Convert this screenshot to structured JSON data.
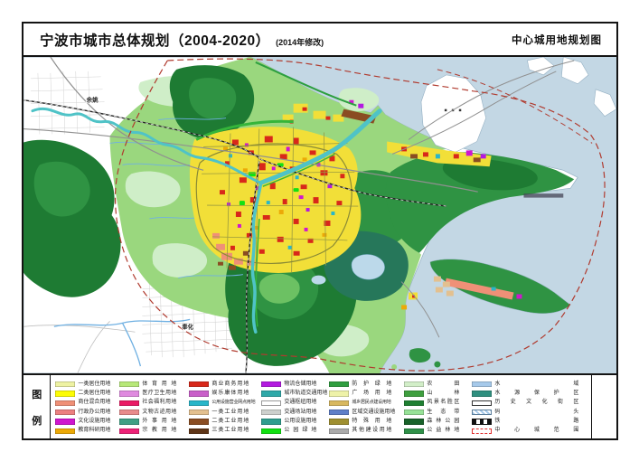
{
  "title": {
    "main": "宁波市城市总体规划（2004-2020）",
    "revision": "(2014年修改)",
    "right": "中心城用地规划图"
  },
  "legend": {
    "key_chars": [
      "图",
      "例"
    ],
    "columns": [
      [
        {
          "label": "一类居住用地",
          "color": "#eef2a3",
          "style": "solid"
        },
        {
          "label": "二类居住用地",
          "color": "#fcfc05",
          "style": "solid"
        },
        {
          "label": "商住混合用地",
          "color": "#ef9077",
          "style": "solid"
        },
        {
          "label": "行政办公用地",
          "color": "#ec8080",
          "style": "solid"
        },
        {
          "label": "文化设施用地",
          "color": "#cf16cf",
          "style": "solid"
        },
        {
          "label": "教育科研用地",
          "color": "#eca907",
          "style": "solid"
        }
      ],
      [
        {
          "label": "体育用地",
          "color": "#b7e878",
          "style": "solid"
        },
        {
          "label": "医疗卫生用地",
          "color": "#df8adf",
          "style": "solid"
        },
        {
          "label": "社会福利用地",
          "color": "#ea1a64",
          "style": "solid"
        },
        {
          "label": "文物古迹用地",
          "color": "#e88b8b",
          "style": "solid"
        },
        {
          "label": "外事用地",
          "color": "#3fa084",
          "style": "solid"
        },
        {
          "label": "宗教用地",
          "color": "#ed2277",
          "style": "solid"
        }
      ],
      [
        {
          "label": "商业商务用地",
          "color": "#d8281a",
          "style": "solid"
        },
        {
          "label": "娱乐康体用地",
          "color": "#c95fc9",
          "style": "solid"
        },
        {
          "label": "公用设施营业网点用地",
          "color": "#29b6c9",
          "style": "solid"
        },
        {
          "label": "一类工业用地",
          "color": "#e3c08f",
          "style": "solid"
        },
        {
          "label": "二类工业用地",
          "color": "#8a4d22",
          "style": "solid"
        },
        {
          "label": "三类工业用地",
          "color": "#5f3517",
          "style": "solid"
        }
      ],
      [
        {
          "label": "物流仓储用地",
          "color": "#b31ae0",
          "style": "solid"
        },
        {
          "label": "城市轨道交通用地",
          "color": "#2fa8a8",
          "style": "solid"
        },
        {
          "label": "交通枢纽用地",
          "color": "#ffffff",
          "style": "outline"
        },
        {
          "label": "交通场站用地",
          "color": "#cdd0cd",
          "style": "solid"
        },
        {
          "label": "公用设施用地",
          "color": "#2f9e8e",
          "style": "solid"
        },
        {
          "label": "公园绿地",
          "color": "#12e112",
          "style": "solid"
        }
      ],
      [
        {
          "label": "防护绿地",
          "color": "#2f9e3f",
          "style": "solid"
        },
        {
          "label": "广场用地",
          "color": "#eef2a8",
          "style": "solid"
        },
        {
          "label": "城乡居民点建设用地",
          "color": "#d8b860",
          "style": "solid"
        },
        {
          "label": "区域交通设施用地",
          "color": "#5f7fc8",
          "style": "solid"
        },
        {
          "label": "特殊用地",
          "color": "#9f8f30",
          "style": "solid"
        },
        {
          "label": "其他建设用地",
          "color": "#ababab",
          "style": "solid"
        }
      ],
      [
        {
          "label": "农田",
          "color": "#d2eec8",
          "style": "solid"
        },
        {
          "label": "山林",
          "color": "#3f9f3f",
          "style": "solid"
        },
        {
          "label": "风景名胜区",
          "color": "#1f8032",
          "style": "solid"
        },
        {
          "label": "生态带",
          "color": "#97e297",
          "style": "solid"
        },
        {
          "label": "森林公园",
          "color": "#186229",
          "style": "solid"
        },
        {
          "label": "公益林地",
          "color": "#2f9048",
          "style": "solid"
        }
      ],
      [
        {
          "label": "水域",
          "color": "#a6c9ea",
          "style": "solid"
        },
        {
          "label": "水源保护区",
          "color": "#2f8f7f",
          "style": "solid"
        },
        {
          "label": "历史文化街区",
          "color": "#ffffff",
          "style": "outline-dark"
        },
        {
          "label": "码头",
          "color": "#a6c9ea",
          "style": "hatch"
        },
        {
          "label": "铁路",
          "color": "#111111",
          "style": "railway"
        },
        {
          "label": "中心城范围",
          "color": "#ffffff",
          "style": "dashed-red"
        }
      ]
    ]
  },
  "map": {
    "labels": {
      "yuyao": "余姚",
      "fenghua": "奉化"
    },
    "colors": {
      "sea": "#c3d7e4",
      "plain": "#9ad77e",
      "mountain_dark": "#1e7b33",
      "mountain_mid": "#2f9343",
      "urban_yellow": "#f2df38",
      "commercial_red": "#d8281a",
      "river_teal": "#4fc3c7",
      "boundary_red": "#b03a2e"
    }
  }
}
